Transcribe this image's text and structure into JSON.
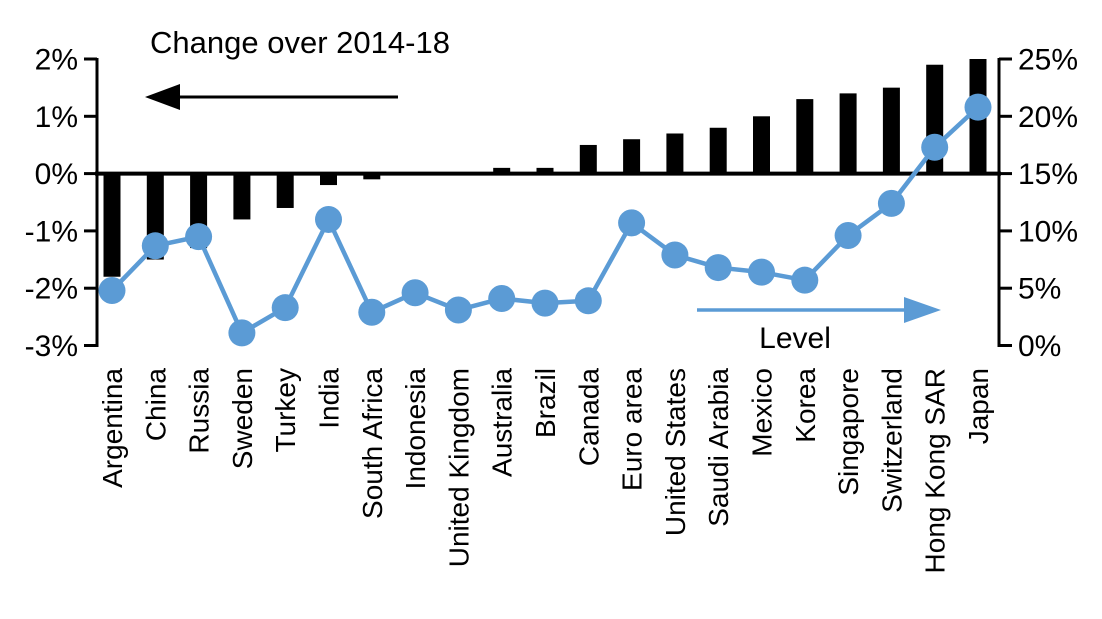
{
  "chart_data": {
    "type": "bar",
    "subtype": "combo-bar-line-dual-axis",
    "title": "",
    "categories": [
      "Argentina",
      "China",
      "Russia",
      "Sweden",
      "Turkey",
      "India",
      "South Africa",
      "Indonesia",
      "United Kingdom",
      "Australia",
      "Brazil",
      "Canada",
      "Euro area",
      "United States",
      "Saudi Arabia",
      "Mexico",
      "Korea",
      "Singapore",
      "Switzerland",
      "Hong Kong SAR",
      "Japan"
    ],
    "series": [
      {
        "name": "Change over 2014-18",
        "type": "bar",
        "axis": "left",
        "color": "#000000",
        "values": [
          -1.8,
          -1.5,
          -1.3,
          -0.8,
          -0.6,
          -0.2,
          -0.1,
          0,
          0,
          0.1,
          0.1,
          0.5,
          0.6,
          0.7,
          0.8,
          1.0,
          1.3,
          1.4,
          1.5,
          1.9,
          2.0
        ]
      },
      {
        "name": "Level",
        "type": "line",
        "axis": "right",
        "color": "#5B9BD5",
        "values": [
          4.8,
          8.7,
          9.5,
          1.1,
          3.3,
          11.0,
          2.9,
          4.6,
          3.1,
          4.1,
          3.7,
          3.9,
          10.7,
          7.9,
          6.8,
          6.4,
          5.7,
          9.6,
          12.4,
          17.3,
          20.8
        ]
      }
    ],
    "left_axis": {
      "min": -3,
      "max": 2,
      "tick_labels": [
        "2%",
        "1%",
        "0%",
        "-1%",
        "-2%",
        "-3%"
      ],
      "tick_values": [
        2,
        1,
        0,
        -1,
        -2,
        -3
      ]
    },
    "right_axis": {
      "min": 0,
      "max": 25,
      "tick_labels": [
        "25%",
        "20%",
        "15%",
        "10%",
        "5%",
        "0%"
      ],
      "tick_values": [
        25,
        20,
        15,
        10,
        5,
        0
      ]
    },
    "annotations": {
      "bar_series_arrow_direction": "left",
      "line_series_arrow_direction": "right"
    },
    "grid": "off",
    "legend_position": "in-plot annotations with arrows"
  }
}
